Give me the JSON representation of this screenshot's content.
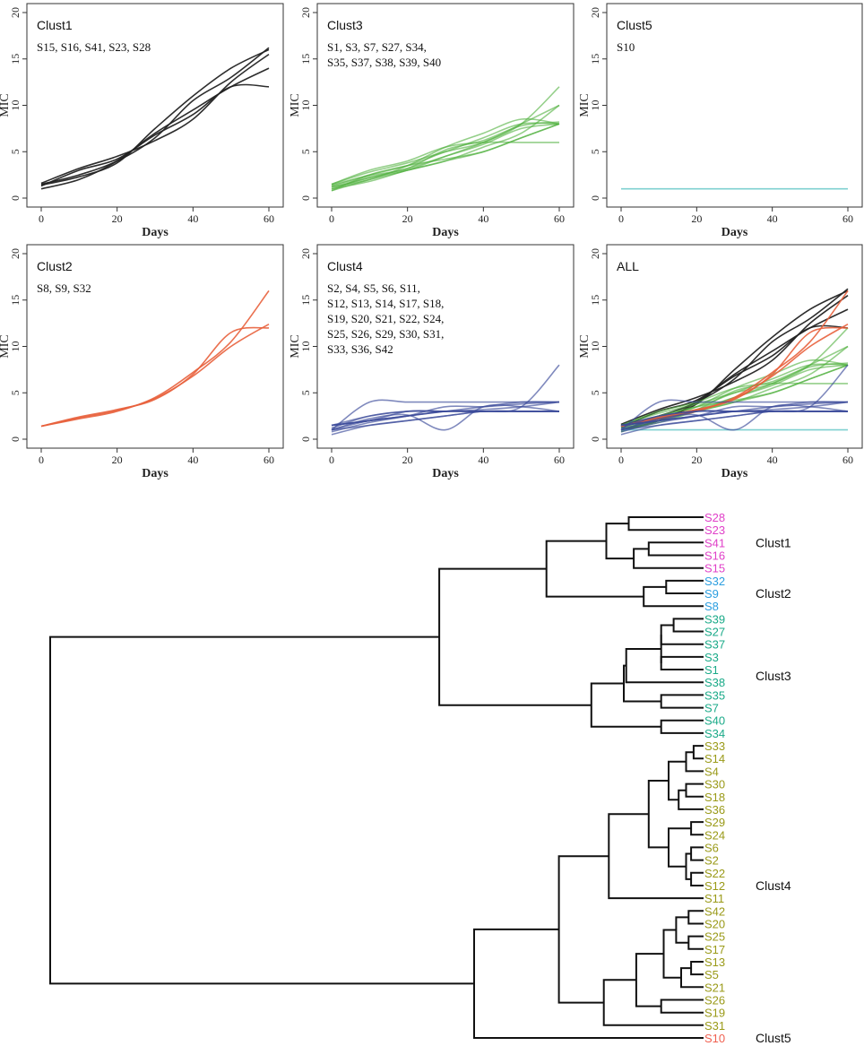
{
  "chart_data": [
    {
      "type": "line",
      "panel": "Clust1",
      "title": "Clust1",
      "members_lines": [
        "S15, S16, S41, S23, S28"
      ],
      "xlabel": "Days",
      "ylabel": "MIC",
      "xlim": [
        0,
        60
      ],
      "ylim": [
        0,
        20
      ],
      "xticks": [
        0,
        20,
        40,
        60
      ],
      "yticks": [
        0,
        5,
        10,
        15,
        20
      ],
      "line_color": "#222222",
      "line_opacity": 0.95,
      "x": [
        0,
        10,
        20,
        30,
        40,
        50,
        60
      ],
      "series": [
        {
          "name": "S15",
          "values": [
            1.5,
            2.5,
            4.0,
            6.5,
            10.5,
            13.0,
            16.2
          ]
        },
        {
          "name": "S16",
          "values": [
            1.0,
            2.0,
            4.0,
            7.0,
            9.5,
            12.0,
            14.0
          ]
        },
        {
          "name": "S41",
          "values": [
            1.3,
            3.0,
            4.2,
            6.8,
            9.0,
            12.0,
            12.0
          ]
        },
        {
          "name": "S23",
          "values": [
            1.4,
            2.3,
            3.8,
            7.5,
            11.0,
            14.0,
            16.0
          ]
        },
        {
          "name": "S28",
          "values": [
            1.6,
            3.2,
            4.5,
            6.2,
            8.5,
            12.5,
            15.5
          ]
        }
      ]
    },
    {
      "type": "line",
      "panel": "Clust3",
      "title": "Clust3",
      "members_lines": [
        "S1, S3, S7, S27, S34,",
        "S35, S37, S38, S39, S40"
      ],
      "xlabel": "Days",
      "ylabel": "MIC",
      "xlim": [
        0,
        60
      ],
      "ylim": [
        0,
        20
      ],
      "xticks": [
        0,
        20,
        40,
        60
      ],
      "yticks": [
        0,
        5,
        10,
        15,
        20
      ],
      "line_color": "#4caf3a",
      "line_opacity": 0.6,
      "x": [
        0,
        10,
        20,
        30,
        40,
        50,
        60
      ],
      "series": [
        {
          "name": "S1",
          "values": [
            0.8,
            2.0,
            3.0,
            4.5,
            6.0,
            8.0,
            12.0
          ]
        },
        {
          "name": "S3",
          "values": [
            1.4,
            2.5,
            3.5,
            5.0,
            6.5,
            8.0,
            8.0
          ]
        },
        {
          "name": "S7",
          "values": [
            1.2,
            2.2,
            3.2,
            4.5,
            5.8,
            7.5,
            8.0
          ]
        },
        {
          "name": "S27",
          "values": [
            1.0,
            1.8,
            3.0,
            4.0,
            5.5,
            7.0,
            10.0
          ]
        },
        {
          "name": "S34",
          "values": [
            1.5,
            3.0,
            4.0,
            5.5,
            6.0,
            6.0,
            6.0
          ]
        },
        {
          "name": "S35",
          "values": [
            1.2,
            2.0,
            3.5,
            5.5,
            7.0,
            8.5,
            8.0
          ]
        },
        {
          "name": "S37",
          "values": [
            0.8,
            2.5,
            3.5,
            4.2,
            5.0,
            6.5,
            8.0
          ]
        },
        {
          "name": "S38",
          "values": [
            1.5,
            2.8,
            3.8,
            5.0,
            6.0,
            8.0,
            10.0
          ]
        },
        {
          "name": "S39",
          "values": [
            1.0,
            2.2,
            3.0,
            4.0,
            5.0,
            6.5,
            8.0
          ]
        },
        {
          "name": "S40",
          "values": [
            1.3,
            2.4,
            3.2,
            5.2,
            6.2,
            7.8,
            8.2
          ]
        }
      ]
    },
    {
      "type": "line",
      "panel": "Clust5",
      "title": "Clust5",
      "members_lines": [
        "S10"
      ],
      "xlabel": "Days",
      "ylabel": "MIC",
      "xlim": [
        0,
        60
      ],
      "ylim": [
        0,
        20
      ],
      "xticks": [
        0,
        20,
        40,
        60
      ],
      "yticks": [
        0,
        5,
        10,
        15,
        20
      ],
      "line_color": "#7fd0d0",
      "line_opacity": 1,
      "x": [
        0,
        10,
        20,
        30,
        40,
        50,
        60
      ],
      "series": [
        {
          "name": "S10",
          "values": [
            1,
            1,
            1,
            1,
            1,
            1,
            1
          ]
        }
      ]
    },
    {
      "type": "line",
      "panel": "Clust2",
      "title": "Clust2",
      "members_lines": [
        "S8, S9, S32"
      ],
      "xlabel": "Days",
      "ylabel": "MIC",
      "xlim": [
        0,
        60
      ],
      "ylim": [
        0,
        20
      ],
      "xticks": [
        0,
        20,
        40,
        60
      ],
      "yticks": [
        0,
        5,
        10,
        15,
        20
      ],
      "line_color": "#e8603c",
      "line_opacity": 0.9,
      "x": [
        0,
        10,
        20,
        30,
        40,
        50,
        60
      ],
      "series": [
        {
          "name": "S8",
          "values": [
            1.4,
            2.2,
            3.0,
            4.5,
            7.2,
            10.5,
            16.0
          ]
        },
        {
          "name": "S9",
          "values": [
            1.4,
            2.4,
            3.2,
            4.3,
            7.0,
            11.5,
            12.0
          ]
        },
        {
          "name": "S32",
          "values": [
            1.4,
            2.3,
            3.1,
            4.4,
            6.8,
            10.0,
            12.4
          ]
        }
      ]
    },
    {
      "type": "line",
      "panel": "Clust4",
      "title": "Clust4",
      "members_lines": [
        "S2, S4, S5, S6, S11,",
        "S12, S13, S14, S17, S18,",
        "S19, S20, S21, S22, S24,",
        "S25, S26, S29, S30, S31,",
        "S33, S36, S42"
      ],
      "xlabel": "Days",
      "ylabel": "MIC",
      "xlim": [
        0,
        60
      ],
      "ylim": [
        0,
        20
      ],
      "xticks": [
        0,
        20,
        40,
        60
      ],
      "yticks": [
        0,
        5,
        10,
        15,
        20
      ],
      "line_color": "#3a4a9a",
      "line_opacity": 0.65,
      "x": [
        0,
        10,
        20,
        30,
        40,
        50,
        60
      ],
      "series": [
        {
          "name": "S2",
          "values": [
            1.5,
            2.5,
            3.0,
            3.0,
            3.0,
            3.0,
            3.0
          ]
        },
        {
          "name": "S4",
          "values": [
            1.0,
            2.0,
            2.5,
            3.0,
            3.0,
            3.0,
            3.0
          ]
        },
        {
          "name": "S5",
          "values": [
            0.5,
            1.5,
            2.0,
            2.5,
            3.0,
            3.0,
            3.0
          ]
        },
        {
          "name": "S6",
          "values": [
            1.5,
            2.0,
            2.5,
            3.0,
            3.5,
            4.0,
            4.0
          ]
        },
        {
          "name": "S11",
          "values": [
            1.0,
            4.0,
            4.0,
            4.0,
            4.0,
            4.0,
            4.0
          ]
        },
        {
          "name": "S12",
          "values": [
            1.2,
            2.5,
            3.0,
            3.0,
            3.2,
            3.5,
            4.0
          ]
        },
        {
          "name": "S13",
          "values": [
            1.0,
            1.5,
            2.0,
            2.5,
            3.0,
            3.0,
            3.0
          ]
        },
        {
          "name": "S17",
          "values": [
            0.8,
            1.8,
            2.5,
            3.5,
            3.5,
            3.8,
            4.0
          ]
        },
        {
          "name": "S19",
          "values": [
            1.5,
            2.0,
            3.0,
            3.0,
            3.0,
            3.0,
            3.0
          ]
        },
        {
          "name": "S21",
          "values": [
            1.0,
            2.2,
            2.6,
            1.0,
            3.5,
            3.5,
            3.0
          ]
        },
        {
          "name": "S31",
          "values": [
            1.5,
            2.0,
            2.5,
            3.0,
            3.0,
            3.5,
            8.0
          ]
        }
      ]
    },
    {
      "type": "line",
      "panel": "ALL",
      "title": "ALL",
      "members_lines": [],
      "xlabel": "Days",
      "ylabel": "MIC",
      "xlim": [
        0,
        60
      ],
      "ylim": [
        0,
        20
      ],
      "xticks": [
        0,
        20,
        40,
        60
      ],
      "yticks": [
        0,
        5,
        10,
        15,
        20
      ],
      "composite_of": [
        "Clust1",
        "Clust3",
        "Clust5",
        "Clust2",
        "Clust4"
      ]
    },
    {
      "type": "dendrogram",
      "leaves": [
        {
          "id": "S28",
          "color": "#e040c8"
        },
        {
          "id": "S23",
          "color": "#e040c8"
        },
        {
          "id": "S41",
          "color": "#e040c8"
        },
        {
          "id": "S16",
          "color": "#e040c8"
        },
        {
          "id": "S15",
          "color": "#e040c8"
        },
        {
          "id": "S32",
          "color": "#2b9ee0"
        },
        {
          "id": "S9",
          "color": "#2b9ee0"
        },
        {
          "id": "S8",
          "color": "#2b9ee0"
        },
        {
          "id": "S39",
          "color": "#1aaa88"
        },
        {
          "id": "S27",
          "color": "#1aaa88"
        },
        {
          "id": "S37",
          "color": "#1aaa88"
        },
        {
          "id": "S3",
          "color": "#1aaa88"
        },
        {
          "id": "S1",
          "color": "#1aaa88"
        },
        {
          "id": "S38",
          "color": "#1aaa88"
        },
        {
          "id": "S35",
          "color": "#1aaa88"
        },
        {
          "id": "S7",
          "color": "#1aaa88"
        },
        {
          "id": "S40",
          "color": "#1aaa88"
        },
        {
          "id": "S34",
          "color": "#1aaa88"
        },
        {
          "id": "S33",
          "color": "#9a9a18"
        },
        {
          "id": "S14",
          "color": "#9a9a18"
        },
        {
          "id": "S4",
          "color": "#9a9a18"
        },
        {
          "id": "S30",
          "color": "#9a9a18"
        },
        {
          "id": "S18",
          "color": "#9a9a18"
        },
        {
          "id": "S36",
          "color": "#9a9a18"
        },
        {
          "id": "S29",
          "color": "#9a9a18"
        },
        {
          "id": "S24",
          "color": "#9a9a18"
        },
        {
          "id": "S6",
          "color": "#9a9a18"
        },
        {
          "id": "S2",
          "color": "#9a9a18"
        },
        {
          "id": "S22",
          "color": "#9a9a18"
        },
        {
          "id": "S12",
          "color": "#9a9a18"
        },
        {
          "id": "S11",
          "color": "#9a9a18"
        },
        {
          "id": "S42",
          "color": "#9a9a18"
        },
        {
          "id": "S20",
          "color": "#9a9a18"
        },
        {
          "id": "S25",
          "color": "#9a9a18"
        },
        {
          "id": "S17",
          "color": "#9a9a18"
        },
        {
          "id": "S13",
          "color": "#9a9a18"
        },
        {
          "id": "S5",
          "color": "#9a9a18"
        },
        {
          "id": "S21",
          "color": "#9a9a18"
        },
        {
          "id": "S26",
          "color": "#9a9a18"
        },
        {
          "id": "S19",
          "color": "#9a9a18"
        },
        {
          "id": "S31",
          "color": "#9a9a18"
        },
        {
          "id": "S10",
          "color": "#f06050"
        }
      ],
      "merges": [
        [
          "S28",
          "S23",
          0.3
        ],
        [
          "S41",
          "S16",
          0.22
        ],
        [
          "m2",
          "S15",
          0.28
        ],
        [
          "m1",
          "m3",
          0.39
        ],
        [
          "S32",
          "S9",
          0.15
        ],
        [
          "m5",
          "S8",
          0.24
        ],
        [
          "m4",
          "m6",
          0.63
        ],
        [
          "S39",
          "S27",
          0.12
        ],
        [
          "m8",
          "S37",
          0.17
        ],
        [
          "S3",
          "S1",
          0.17
        ],
        [
          "m9",
          "m10",
          0.17
        ],
        [
          "m11",
          "S38",
          0.31
        ],
        [
          "S35",
          "S7",
          0.17
        ],
        [
          "m12",
          "m13",
          0.32
        ],
        [
          "S40",
          "S34",
          0.17
        ],
        [
          "m14",
          "m15",
          0.45
        ],
        [
          "m7",
          "m16",
          1.06
        ],
        [
          "S33",
          "S14",
          0.04
        ],
        [
          "m18",
          "S4",
          0.07
        ],
        [
          "S30",
          "S18",
          0.07
        ],
        [
          "m20",
          "S36",
          0.1
        ],
        [
          "m19",
          "m21",
          0.14
        ],
        [
          "S29",
          "S24",
          0.05
        ],
        [
          "S6",
          "S2",
          0.05
        ],
        [
          "S22",
          "S12",
          0.05
        ],
        [
          "m24",
          "m25",
          0.07
        ],
        [
          "m23",
          "m26",
          0.14
        ],
        [
          "m22",
          "m27",
          0.22
        ],
        [
          "m28",
          "S11",
          0.38
        ],
        [
          "S42",
          "S20",
          0.06
        ],
        [
          "S25",
          "S17",
          0.06
        ],
        [
          "m30",
          "m31",
          0.11
        ],
        [
          "S13",
          "S5",
          0.05
        ],
        [
          "m33",
          "S21",
          0.09
        ],
        [
          "m32",
          "m34",
          0.16
        ],
        [
          "S26",
          "S19",
          0.17
        ],
        [
          "m35",
          "m36",
          0.27
        ],
        [
          "m37",
          "S31",
          0.4
        ],
        [
          "m29",
          "m38",
          0.58
        ],
        [
          "m39",
          "S10",
          0.92
        ],
        [
          "m17",
          "m40",
          2.62
        ]
      ],
      "clusters": [
        {
          "name": "Clust1",
          "first": 0,
          "last": 4
        },
        {
          "name": "Clust2",
          "first": 5,
          "last": 7
        },
        {
          "name": "Clust3",
          "first": 8,
          "last": 17
        },
        {
          "name": "Clust4",
          "first": 18,
          "last": 40
        },
        {
          "name": "Clust5",
          "first": 41,
          "last": 41
        }
      ]
    }
  ]
}
